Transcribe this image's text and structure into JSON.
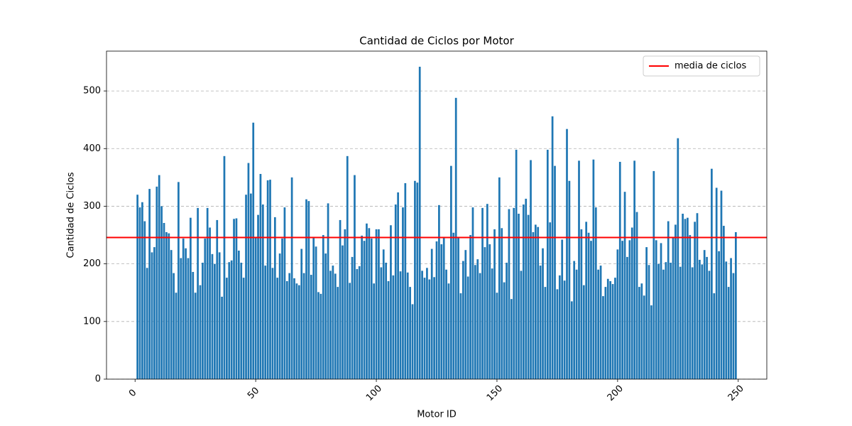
{
  "chart_data": {
    "type": "bar",
    "title": "Cantidad de Ciclos por Motor",
    "x_label": "Motor ID",
    "y_label": "Cantidad de Ciclos",
    "color": "#1f77b4",
    "x": [
      1,
      2,
      3,
      4,
      5,
      6,
      7,
      8,
      9,
      10,
      11,
      12,
      13,
      14,
      15,
      16,
      17,
      18,
      19,
      20,
      21,
      22,
      23,
      24,
      25,
      26,
      27,
      28,
      29,
      30,
      31,
      32,
      33,
      34,
      35,
      36,
      37,
      38,
      39,
      40,
      41,
      42,
      43,
      44,
      45,
      46,
      47,
      48,
      49,
      50,
      51,
      52,
      53,
      54,
      55,
      56,
      57,
      58,
      59,
      60,
      61,
      62,
      63,
      64,
      65,
      66,
      67,
      68,
      69,
      70,
      71,
      72,
      73,
      74,
      75,
      76,
      77,
      78,
      79,
      80,
      81,
      82,
      83,
      84,
      85,
      86,
      87,
      88,
      89,
      90,
      91,
      92,
      93,
      94,
      95,
      96,
      97,
      98,
      99,
      100,
      101,
      102,
      103,
      104,
      105,
      106,
      107,
      108,
      109,
      110,
      111,
      112,
      113,
      114,
      115,
      116,
      117,
      118,
      119,
      120,
      121,
      122,
      123,
      124,
      125,
      126,
      127,
      128,
      129,
      130,
      131,
      132,
      133,
      134,
      135,
      136,
      137,
      138,
      139,
      140,
      141,
      142,
      143,
      144,
      145,
      146,
      147,
      148,
      149,
      150,
      151,
      152,
      153,
      154,
      155,
      156,
      157,
      158,
      159,
      160,
      161,
      162,
      163,
      164,
      165,
      166,
      167,
      168,
      169,
      170,
      171,
      172,
      173,
      174,
      175,
      176,
      177,
      178,
      179,
      180,
      181,
      182,
      183,
      184,
      185,
      186,
      187,
      188,
      189,
      190,
      191,
      192,
      193,
      194,
      195,
      196,
      197,
      198,
      199,
      200,
      201,
      202,
      203,
      204,
      205,
      206,
      207,
      208,
      209,
      210,
      211,
      212,
      213,
      214,
      215,
      216,
      217,
      218,
      219,
      220,
      221,
      222,
      223,
      224,
      225,
      226,
      227,
      228,
      229,
      230,
      231,
      232,
      233,
      234,
      235,
      236,
      237,
      238,
      239,
      240,
      241,
      242,
      243,
      244,
      245,
      246,
      247,
      248,
      249
    ],
    "values": [
      320,
      298,
      307,
      274,
      193,
      330,
      220,
      229,
      334,
      354,
      300,
      271,
      255,
      253,
      224,
      184,
      150,
      342,
      210,
      244,
      227,
      210,
      280,
      186,
      150,
      297,
      163,
      202,
      244,
      297,
      263,
      217,
      200,
      276,
      220,
      143,
      387,
      176,
      203,
      206,
      278,
      279,
      223,
      202,
      176,
      320,
      375,
      322,
      445,
      246,
      285,
      356,
      303,
      197,
      345,
      346,
      193,
      281,
      176,
      218,
      244,
      298,
      170,
      184,
      350,
      175,
      166,
      163,
      226,
      184,
      312,
      309,
      181,
      247,
      230,
      151,
      148,
      250,
      218,
      305,
      188,
      197,
      183,
      160,
      276,
      232,
      260,
      387,
      167,
      212,
      354,
      191,
      196,
      249,
      240,
      270,
      262,
      244,
      166,
      260,
      260,
      194,
      225,
      202,
      170,
      267,
      180,
      303,
      324,
      187,
      298,
      340,
      185,
      160,
      130,
      344,
      341,
      542,
      188,
      176,
      193,
      173,
      226,
      177,
      239,
      302,
      234,
      247,
      190,
      166,
      370,
      254,
      488,
      246,
      149,
      205,
      224,
      178,
      250,
      298,
      198,
      208,
      184,
      297,
      229,
      304,
      234,
      192,
      260,
      150,
      350,
      262,
      168,
      202,
      295,
      139,
      297,
      398,
      287,
      188,
      303,
      313,
      285,
      380,
      255,
      268,
      264,
      197,
      227,
      160,
      398,
      272,
      456,
      370,
      156,
      180,
      242,
      171,
      434,
      344,
      135,
      205,
      190,
      379,
      260,
      163,
      273,
      254,
      240,
      381,
      298,
      190,
      197,
      144,
      160,
      174,
      170,
      165,
      176,
      225,
      377,
      240,
      325,
      212,
      241,
      263,
      379,
      290,
      160,
      166,
      145,
      229,
      198,
      128,
      361,
      241,
      200,
      236,
      190,
      203,
      274,
      202,
      245,
      268,
      418,
      195,
      287,
      278,
      280,
      250,
      194,
      273,
      288,
      207,
      199,
      224,
      212,
      188,
      365,
      149,
      332,
      222,
      327,
      266,
      204,
      160,
      210,
      184,
      255
    ],
    "mean_line": {
      "name": "media de ciclos",
      "value": 245.7,
      "color": "#ff0000"
    },
    "xlim": [
      -11.84,
      261.84
    ],
    "xticks": [
      0,
      50,
      100,
      150,
      200,
      250
    ],
    "ylim": [
      0,
      569.1
    ],
    "yticks": [
      0,
      100,
      200,
      300,
      400,
      500
    ],
    "grid": true,
    "legend": "upper right"
  }
}
